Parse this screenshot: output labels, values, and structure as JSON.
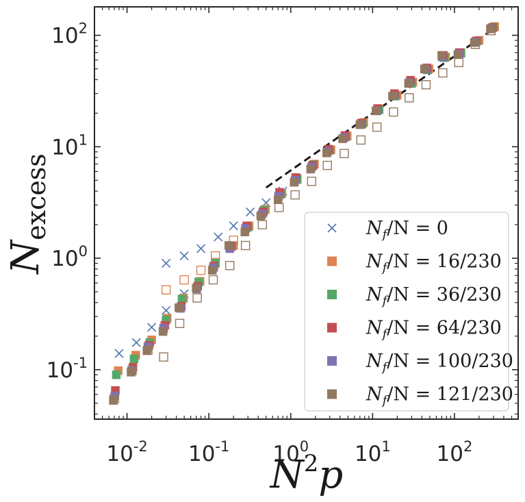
{
  "chart_data": {
    "type": "scatter",
    "xscale": "log",
    "yscale": "log",
    "xlim": [
      0.004,
      600
    ],
    "ylim": [
      0.036,
      180
    ],
    "xlabel": {
      "base": "N",
      "sup": "2",
      "tail": "p"
    },
    "ylabel": {
      "base": "N",
      "sub": "excess"
    },
    "xticks": [
      {
        "value": 0.01,
        "base": "10",
        "exp": "-2"
      },
      {
        "value": 0.1,
        "base": "10",
        "exp": "-1"
      },
      {
        "value": 1,
        "base": "10",
        "exp": "0"
      },
      {
        "value": 10,
        "base": "10",
        "exp": "1"
      },
      {
        "value": 100,
        "base": "10",
        "exp": "2"
      }
    ],
    "yticks": [
      {
        "value": 0.1,
        "base": "10",
        "exp": "-1"
      },
      {
        "value": 1,
        "base": "10",
        "exp": "0"
      },
      {
        "value": 10,
        "base": "10",
        "exp": "1"
      },
      {
        "value": 100,
        "base": "10",
        "exp": "2"
      }
    ],
    "fit_line": {
      "x": [
        0.5,
        320
      ],
      "y": [
        4.3,
        118
      ],
      "style": "dashed",
      "color": "#1a1a1a"
    },
    "series": [
      {
        "name": "N_f/N=0",
        "label_base": "N",
        "label_sub": "f",
        "label_rest": "/N = 0",
        "color": "#4c72b0",
        "marker": "x",
        "x": [
          0.008,
          0.013,
          0.02,
          0.03,
          0.05,
          0.08,
          0.13,
          0.2,
          0.32,
          0.5,
          0.8
        ],
        "y": [
          0.14,
          0.175,
          0.24,
          0.9,
          1.05,
          1.22,
          1.55,
          1.95,
          2.6,
          3.15,
          4.0
        ],
        "x2": [
          0.03,
          0.05
        ],
        "y2": [
          0.34,
          0.48
        ]
      },
      {
        "name": "N_f/N=16/230",
        "label_base": "N",
        "label_sub": "f",
        "label_rest": "/N = 16/230",
        "color": "#dd8452",
        "marker": "square",
        "x": [
          0.0078,
          0.0128,
          0.02,
          0.031,
          0.049,
          0.078,
          0.12,
          0.2,
          0.31,
          0.49,
          0.78,
          1.2,
          1.95,
          3.1,
          4.9,
          7.8,
          12,
          20,
          31,
          49,
          78,
          120,
          200,
          310
        ],
        "y": [
          0.098,
          0.135,
          0.185,
          0.29,
          0.44,
          0.62,
          0.92,
          1.3,
          1.95,
          2.75,
          3.8,
          5.2,
          7.0,
          9.4,
          12.5,
          16.5,
          22,
          29,
          38,
          50,
          64,
          70,
          90,
          120
        ],
        "xo": [
          0.03,
          0.05,
          0.08,
          0.12,
          0.2
        ],
        "yo": [
          0.52,
          0.64,
          0.78,
          1.05,
          1.45
        ]
      },
      {
        "name": "N_f/N=36/230",
        "label_base": "N",
        "label_sub": "f",
        "label_rest": "/N = 36/230",
        "color": "#55a868",
        "marker": "square",
        "x": [
          0.0074,
          0.0122,
          0.019,
          0.03,
          0.047,
          0.075,
          0.12,
          0.19,
          0.3,
          0.47,
          0.75,
          1.2,
          1.9,
          3.0,
          4.7,
          7.5,
          12,
          19,
          30,
          47,
          75,
          120,
          190,
          300
        ],
        "y": [
          0.09,
          0.125,
          0.175,
          0.28,
          0.43,
          0.61,
          0.9,
          1.28,
          1.9,
          2.7,
          3.75,
          5.1,
          6.9,
          9.3,
          12.3,
          16,
          21.5,
          28.5,
          37,
          49,
          63,
          69,
          89,
          118
        ]
      },
      {
        "name": "N_f/N=64/230",
        "label_base": "N",
        "label_sub": "f",
        "label_rest": "/N = 64/230",
        "color": "#c44e52",
        "marker": "square",
        "x": [
          0.0072,
          0.0118,
          0.0185,
          0.029,
          0.046,
          0.073,
          0.115,
          0.185,
          0.29,
          0.46,
          0.73,
          1.15,
          1.85,
          2.9,
          4.6,
          7.3,
          11.5,
          18.5,
          29,
          46,
          73,
          115,
          185,
          290
        ],
        "y": [
          0.065,
          0.105,
          0.165,
          0.25,
          0.37,
          0.56,
          0.85,
          1.27,
          1.95,
          2.6,
          3.9,
          5.3,
          6.8,
          9.5,
          12.6,
          16.3,
          22,
          30,
          39.5,
          51,
          66,
          70,
          89,
          117
        ]
      },
      {
        "name": "N_f/N=100/230",
        "label_base": "N",
        "label_sub": "f",
        "label_rest": "/N = 100/230",
        "color": "#8172b3",
        "marker": "square",
        "x": [
          0.0071,
          0.0116,
          0.018,
          0.028,
          0.045,
          0.071,
          0.113,
          0.18,
          0.28,
          0.45,
          0.71,
          1.13,
          1.8,
          2.8,
          4.5,
          7.1,
          11.3,
          18,
          28,
          45,
          71,
          113,
          180,
          280
        ],
        "y": [
          0.058,
          0.098,
          0.16,
          0.235,
          0.355,
          0.53,
          0.82,
          1.22,
          1.85,
          2.5,
          3.6,
          5.0,
          6.6,
          9.0,
          12.1,
          15.8,
          21,
          28.5,
          37.5,
          49.5,
          64,
          68,
          87,
          115
        ]
      },
      {
        "name": "N_f/N=121/230",
        "label_base": "N",
        "label_sub": "f",
        "label_rest": "/N = 121/230",
        "color": "#937860",
        "marker": "square",
        "x": [
          0.0068,
          0.0112,
          0.0175,
          0.0275,
          0.043,
          0.07,
          0.11,
          0.175,
          0.275,
          0.43,
          0.7,
          1.1,
          1.75,
          2.75,
          4.3,
          7.0,
          11,
          17.5,
          27.5,
          43,
          70,
          110,
          175,
          275
        ],
        "y": [
          0.053,
          0.095,
          0.148,
          0.22,
          0.36,
          0.54,
          0.78,
          1.3,
          1.72,
          2.4,
          3.35,
          4.8,
          6.3,
          8.8,
          11.8,
          15.8,
          21,
          28.5,
          37,
          50,
          66,
          67,
          86,
          114
        ],
        "xo": [
          0.007,
          0.0115,
          0.018,
          0.028,
          0.044,
          0.072,
          0.113,
          0.18,
          0.28,
          0.45,
          0.72,
          1.13,
          1.8,
          2.8,
          4.5,
          7.2,
          11.3,
          18,
          28,
          45,
          72,
          113,
          180,
          280
        ],
        "yo": [
          0.055,
          0.098,
          0.15,
          0.13,
          0.26,
          0.44,
          0.64,
          0.86,
          1.3,
          2.0,
          2.85,
          3.7,
          4.9,
          6.8,
          8.7,
          11.5,
          15,
          20.5,
          27.5,
          36,
          46,
          57,
          83,
          110
        ]
      }
    ]
  }
}
